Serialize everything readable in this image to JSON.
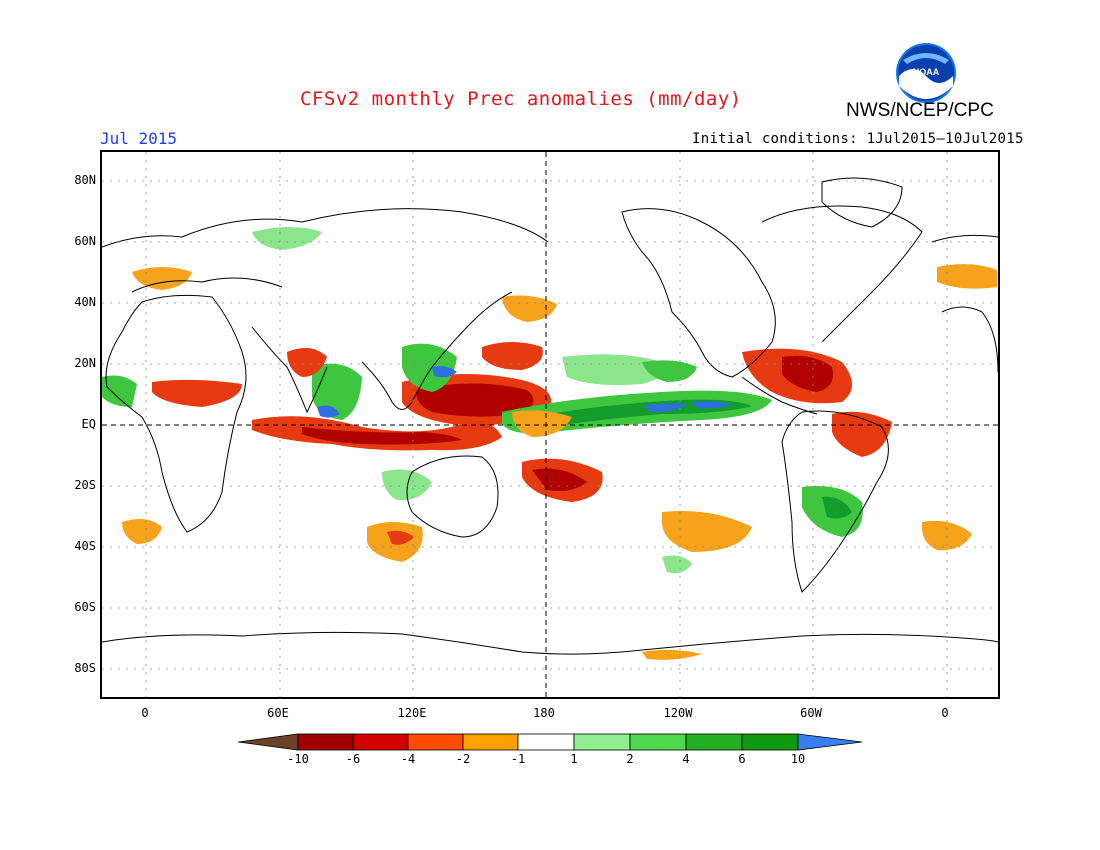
{
  "header": {
    "title": "CFSv2 monthly Prec anomalies (mm/day)",
    "agency": "NWS/NCEP/CPC",
    "logo_text": "NOAA",
    "month": "Jul 2015",
    "initial_conditions": "Initial conditions: 1Jul2015–10Jul2015"
  },
  "axes": {
    "lat_labels": [
      "80N",
      "60N",
      "40N",
      "20N",
      "EQ",
      "20S",
      "40S",
      "60S",
      "80S"
    ],
    "lon_labels": [
      "0",
      "60E",
      "120E",
      "180",
      "120W",
      "60W",
      "0"
    ]
  },
  "colorbar": {
    "labels": [
      "-10",
      "-6",
      "-4",
      "-2",
      "-1",
      "1",
      "2",
      "4",
      "6",
      "10"
    ],
    "colors": [
      "#6b4226",
      "#a00000",
      "#d40000",
      "#ff4b00",
      "#ffa000",
      "#ffffff",
      "#90ee90",
      "#4cd94c",
      "#22b022",
      "#0e9a0e",
      "#3a7ef0"
    ]
  },
  "colors": {
    "dry_strong": "#b00000",
    "dry_mod": "#e83a10",
    "dry_weak": "#f7a21b",
    "wet_weak": "#8be58b",
    "wet_mod": "#3ec63e",
    "wet_strong": "#119c2b",
    "wet_extreme": "#2e6fe0"
  }
}
